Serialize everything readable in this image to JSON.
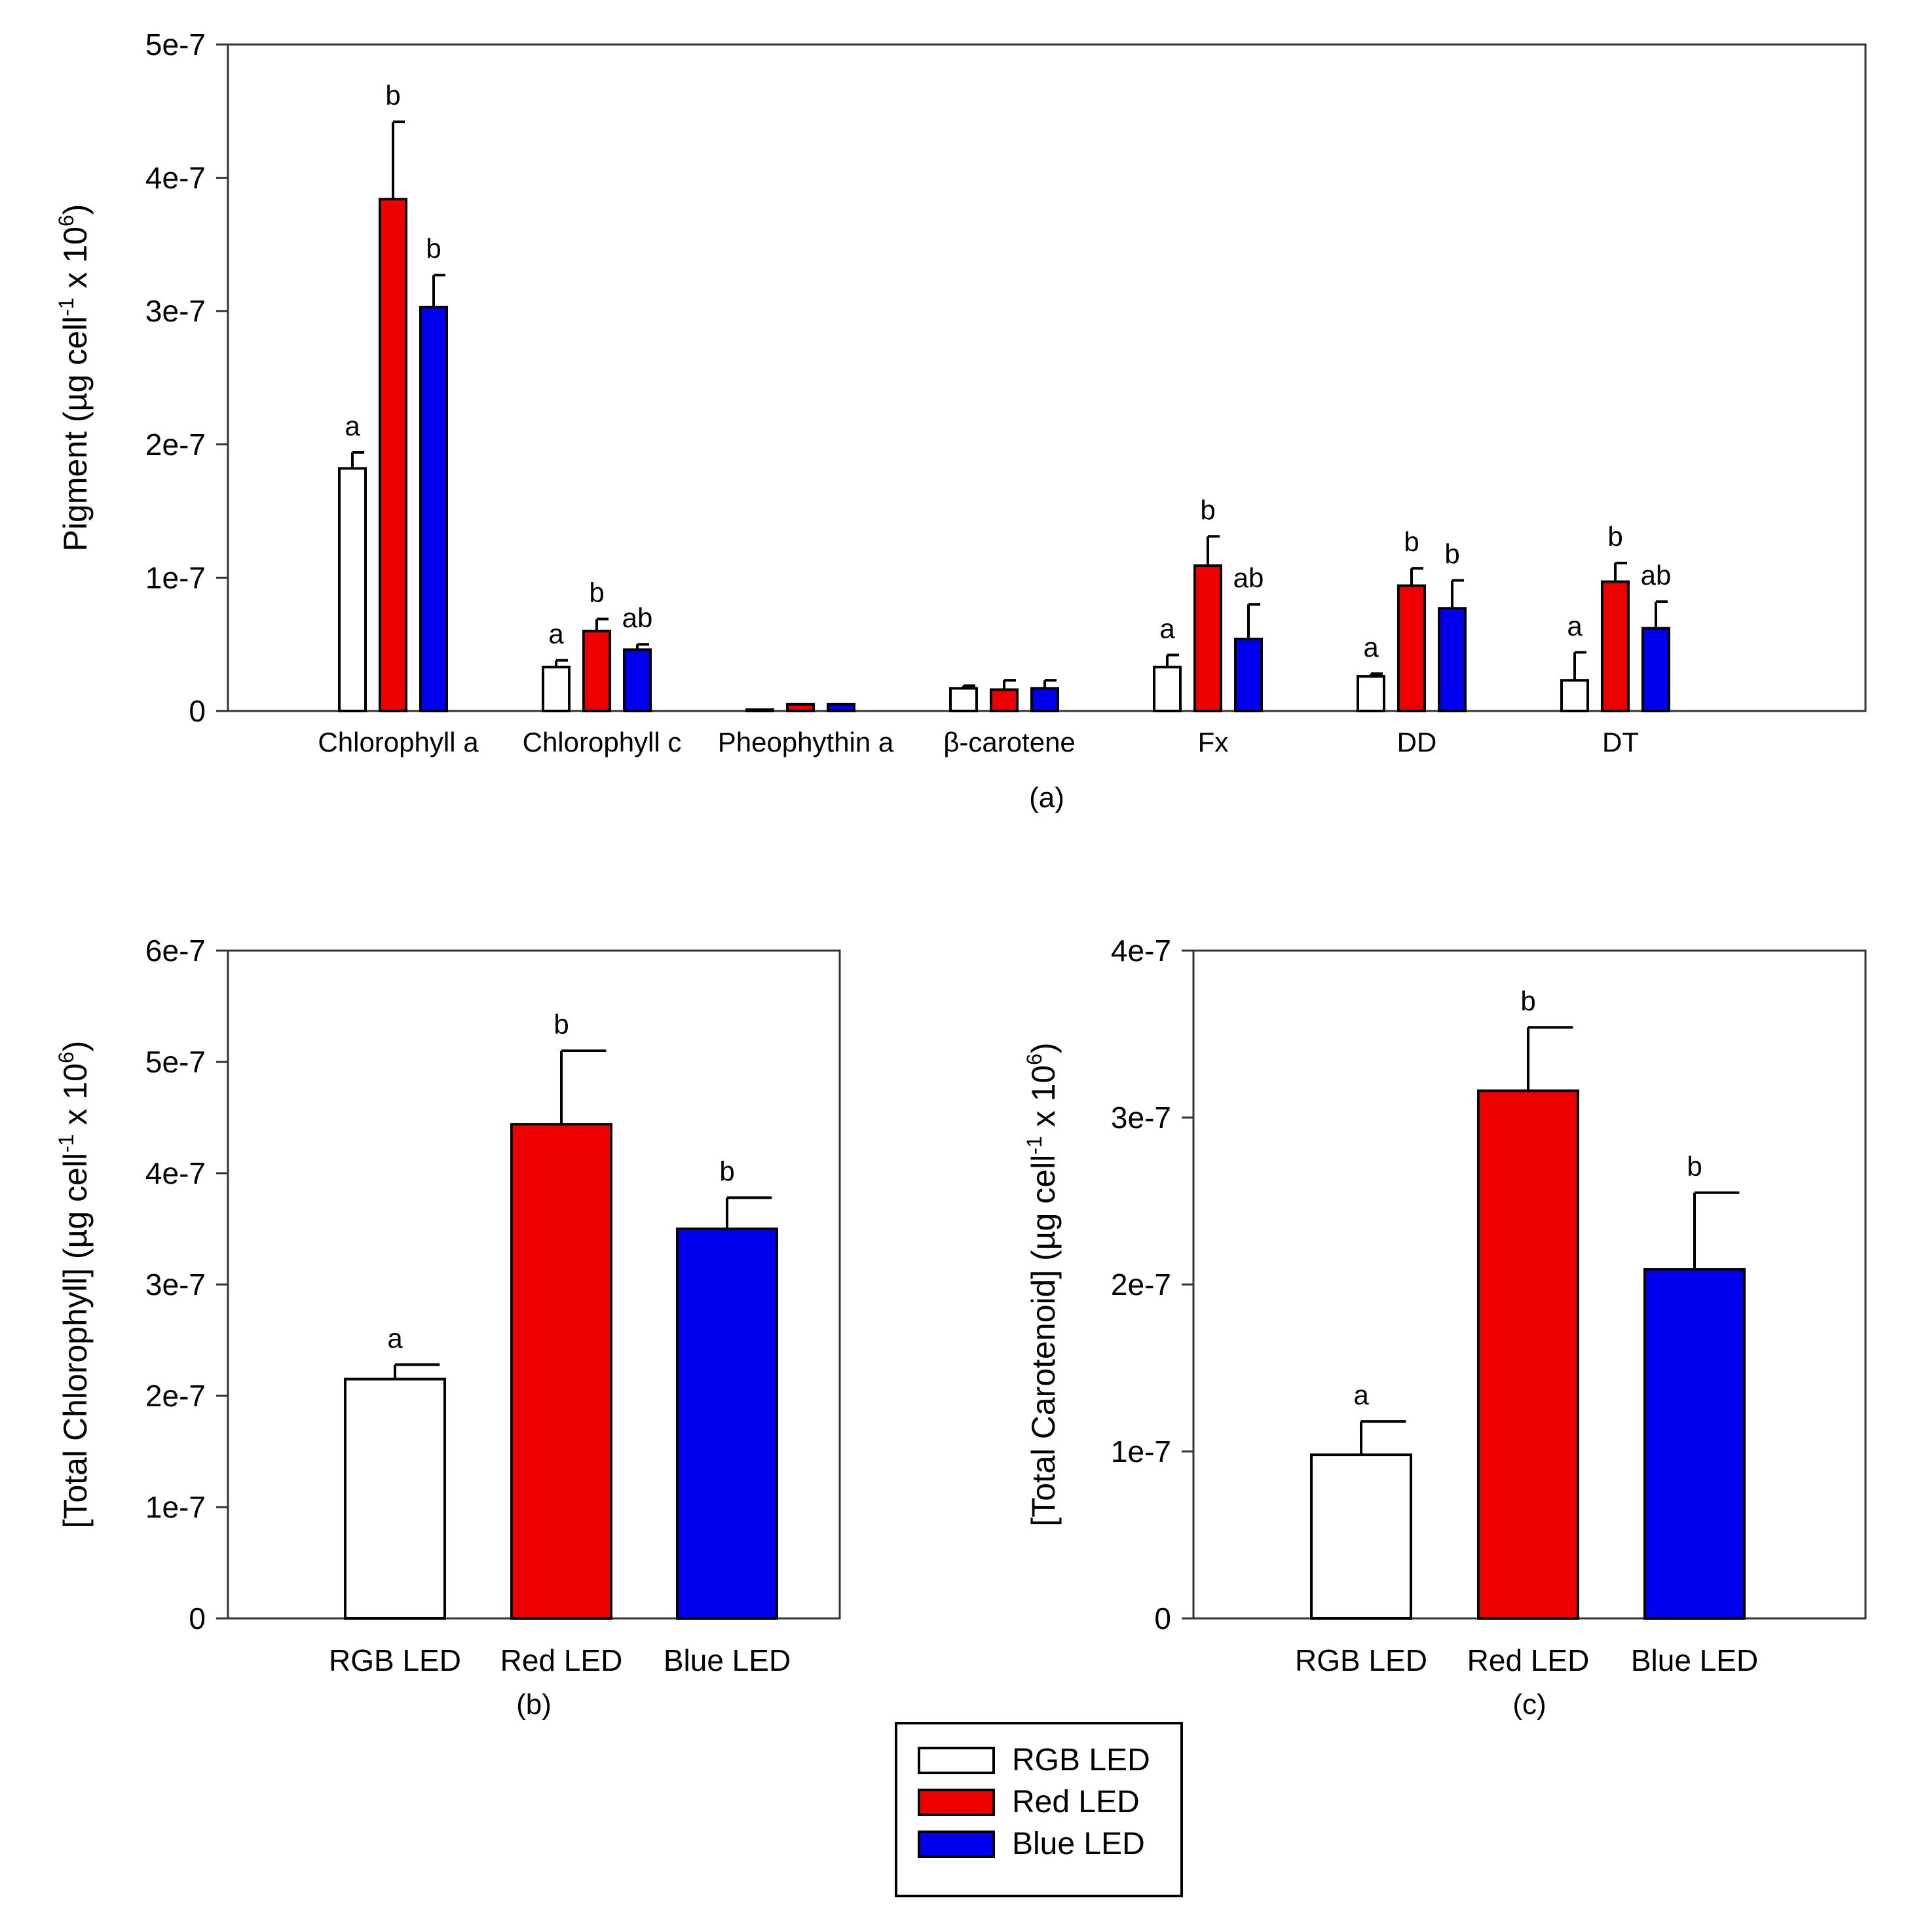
{
  "colors": {
    "RGB LED": "#ffffff",
    "Red LED": "#ee0000",
    "Blue LED": "#0000ee",
    "axis": "#333333"
  },
  "legend": {
    "entries": [
      "RGB LED",
      "Red LED",
      "Blue LED"
    ]
  },
  "chart_data": [
    {
      "id": "a",
      "type": "bar",
      "panel_label": "(a)",
      "ylabel_main": "Pigment (µg cell",
      "ylabel_sup1": "-1",
      "ylabel_mid": " x 10",
      "ylabel_sup2": "6",
      "ylabel_end": ")",
      "ylim": [
        0,
        5e-07
      ],
      "yticks": [
        0,
        1e-07,
        2e-07,
        3e-07,
        4e-07,
        5e-07
      ],
      "ytick_labels": [
        "0",
        "1e-7",
        "2e-7",
        "3e-7",
        "4e-7",
        "5e-7"
      ],
      "categories": [
        "Chlorophyll a",
        "Chlorophyll c",
        "Pheophythin a",
        "β-carotene",
        "Fx",
        "DD",
        "DT"
      ],
      "series": [
        {
          "name": "RGB LED",
          "values": [
            1.82e-07,
            3.3e-08,
            1e-09,
            1.7e-08,
            3.3e-08,
            2.6e-08,
            2.3e-08
          ],
          "errors": [
            1.2e-08,
            5e-09,
            0,
            2e-09,
            9e-09,
            2e-09,
            2.1e-08
          ],
          "sig": [
            "a",
            "a",
            "",
            "",
            "a",
            "a",
            "a"
          ]
        },
        {
          "name": "Red LED",
          "values": [
            3.84e-07,
            6e-08,
            5e-09,
            1.6e-08,
            1.09e-07,
            9.4e-08,
            9.7e-08
          ],
          "errors": [
            5.8e-08,
            9e-09,
            0,
            7e-09,
            2.2e-08,
            1.3e-08,
            1.4e-08
          ],
          "sig": [
            "b",
            "b",
            "",
            "",
            "b",
            "b",
            "b"
          ]
        },
        {
          "name": "Blue LED",
          "values": [
            3.03e-07,
            4.6e-08,
            5e-09,
            1.7e-08,
            5.4e-08,
            7.7e-08,
            6.2e-08
          ],
          "errors": [
            2.4e-08,
            4e-09,
            0,
            6e-09,
            2.6e-08,
            2.1e-08,
            2e-08
          ],
          "sig": [
            "b",
            "ab",
            "",
            "",
            "ab",
            "b",
            "ab"
          ]
        }
      ]
    },
    {
      "id": "b",
      "type": "bar",
      "panel_label": "(b)",
      "ylabel_main": "[Total Chlorophyll] (µg cell",
      "ylabel_sup1": "-1",
      "ylabel_mid": " x 10",
      "ylabel_sup2": "6",
      "ylabel_end": ")",
      "ylim": [
        0,
        6e-07
      ],
      "yticks": [
        0,
        1e-07,
        2e-07,
        3e-07,
        4e-07,
        5e-07,
        6e-07
      ],
      "ytick_labels": [
        "0",
        "1e-7",
        "2e-7",
        "3e-7",
        "4e-7",
        "5e-7",
        "6e-7"
      ],
      "categories": [
        "RGB LED",
        "Red LED",
        "Blue LED"
      ],
      "values": [
        2.15e-07,
        4.44e-07,
        3.5e-07
      ],
      "errors": [
        1.3e-08,
        6.6e-08,
        2.8e-08
      ],
      "sig": [
        "a",
        "b",
        "b"
      ]
    },
    {
      "id": "c",
      "type": "bar",
      "panel_label": "(c)",
      "ylabel_main": "[Total Carotenoid] (µg cell",
      "ylabel_sup1": "-1",
      "ylabel_mid": " x 10",
      "ylabel_sup2": "6",
      "ylabel_end": ")",
      "ylim": [
        0,
        4e-07
      ],
      "yticks": [
        0,
        1e-07,
        2e-07,
        3e-07,
        4e-07
      ],
      "ytick_labels": [
        "0",
        "1e-7",
        "2e-7",
        "3e-7",
        "4e-7"
      ],
      "categories": [
        "RGB LED",
        "Red LED",
        "Blue LED"
      ],
      "values": [
        9.8e-08,
        3.16e-07,
        2.09e-07
      ],
      "errors": [
        2e-08,
        3.8e-08,
        4.6e-08
      ],
      "sig": [
        "a",
        "b",
        "b"
      ]
    }
  ]
}
